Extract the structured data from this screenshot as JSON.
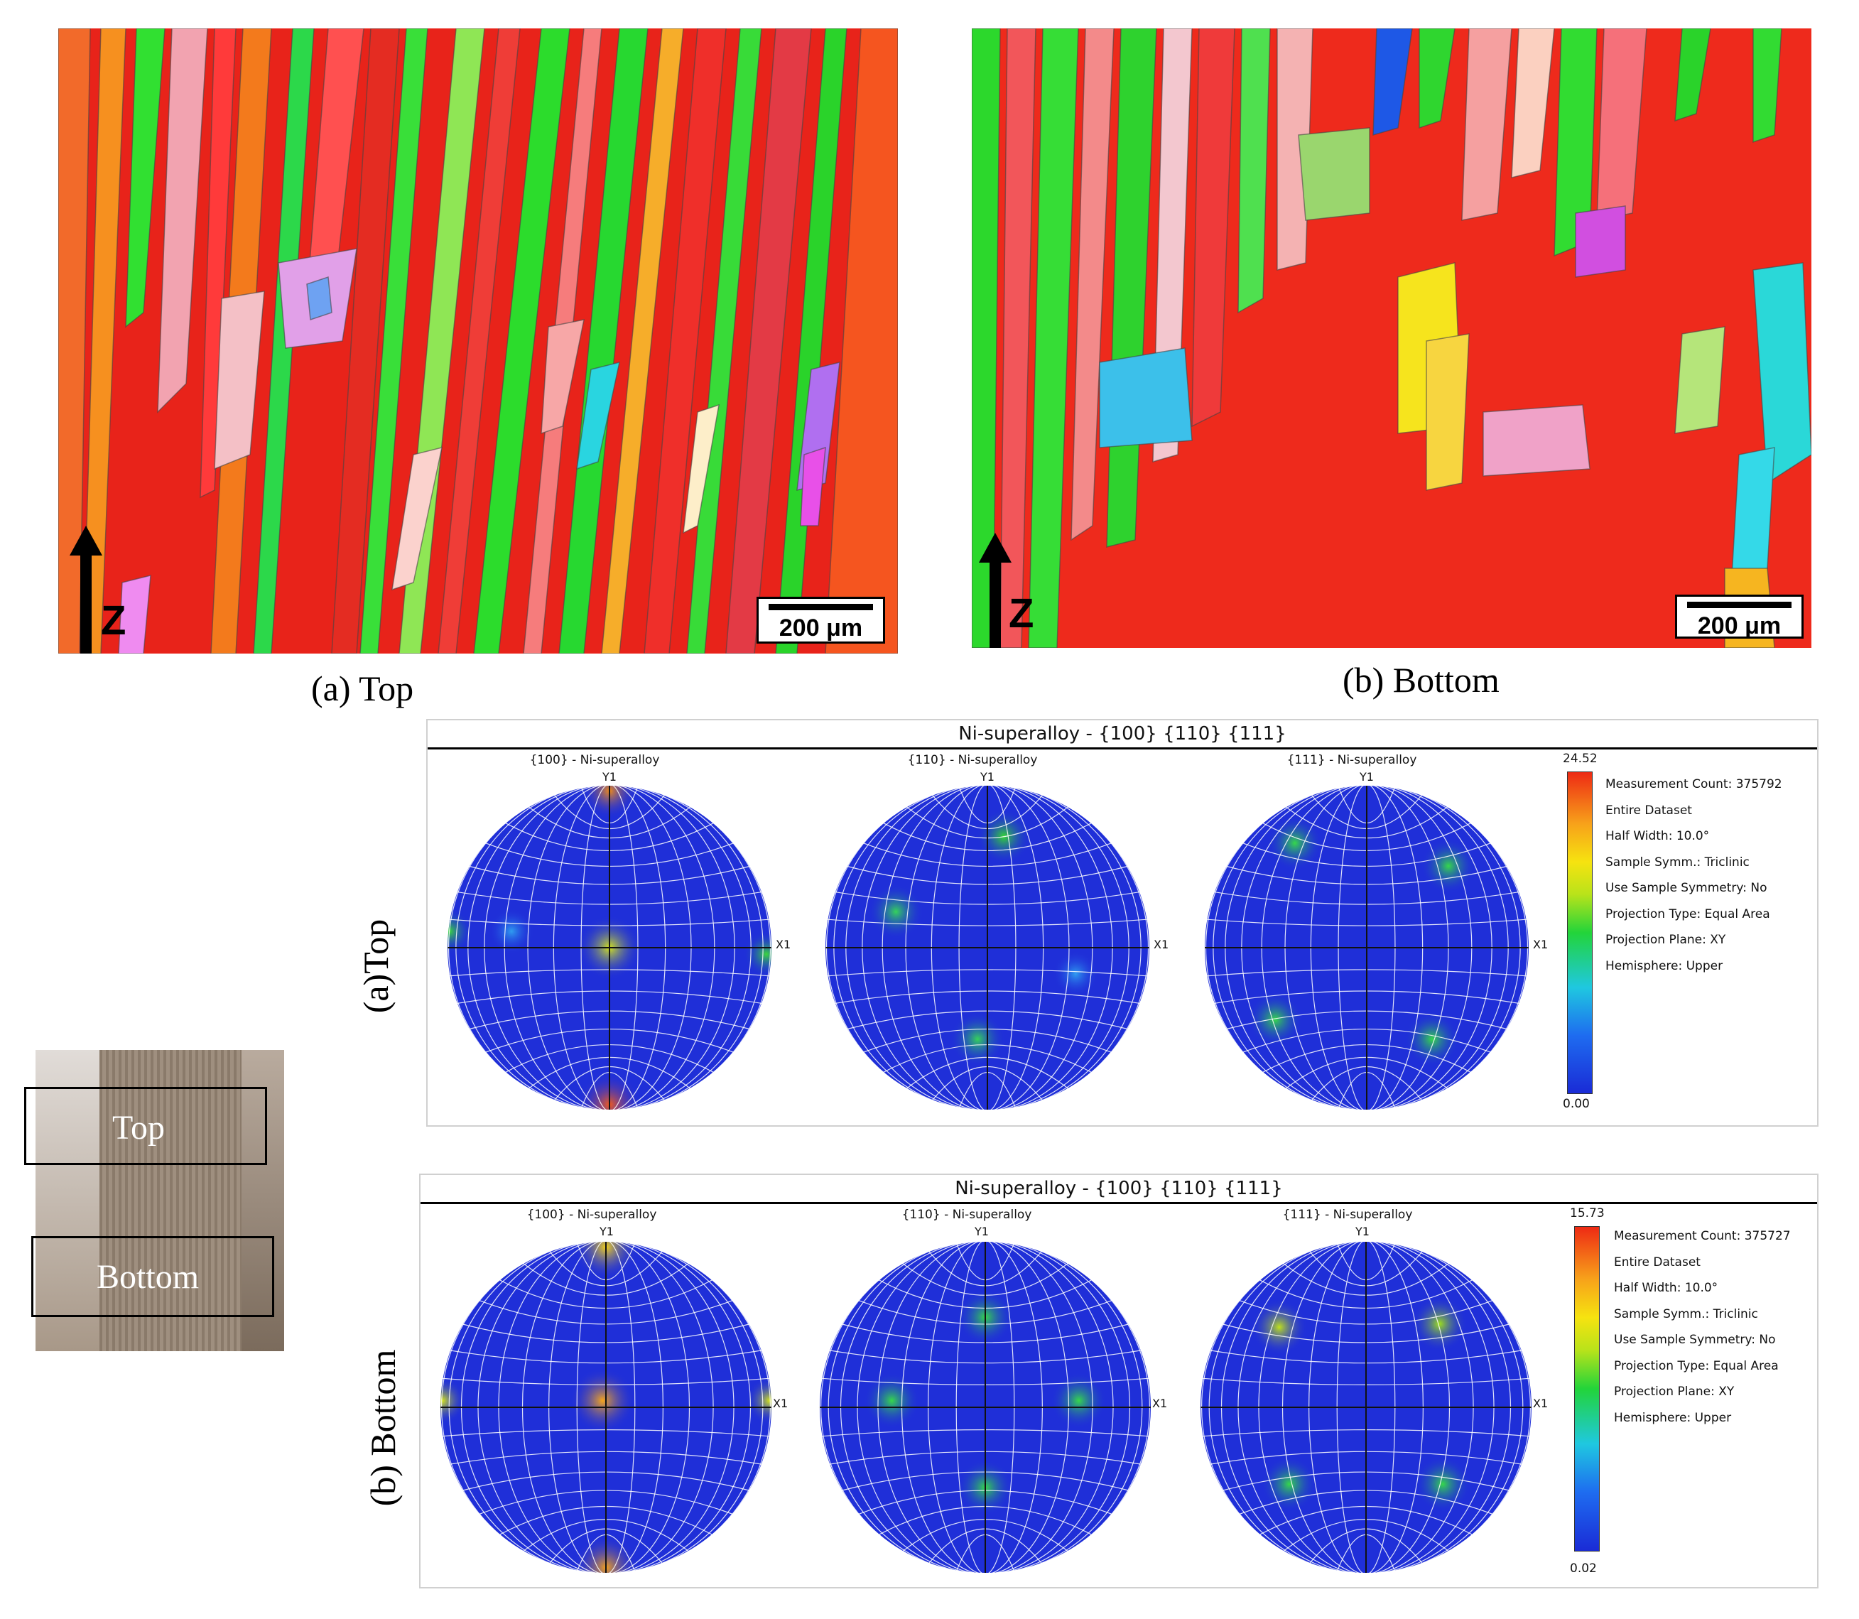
{
  "ebsd_top": {
    "caption": "(a) Top",
    "scale_label": "200 μm",
    "axis_label": "Z"
  },
  "ebsd_bottom": {
    "caption": "(b) Bottom",
    "scale_label": "200 μm",
    "axis_label": "Z"
  },
  "photo": {
    "top_label": "Top",
    "bottom_label": "Bottom"
  },
  "pole_top": {
    "row_label": "(a)Top",
    "header": "Ni-superalloy - {100} {110} {111}",
    "figures": [
      {
        "title": "{100} - Ni-superalloy",
        "y_label": "Y1",
        "x_label": "X1"
      },
      {
        "title": "{110} - Ni-superalloy",
        "y_label": "Y1",
        "x_label": "X1"
      },
      {
        "title": "{111} - Ni-superalloy",
        "y_label": "Y1",
        "x_label": "X1"
      }
    ],
    "colorbar": {
      "max": "24.52",
      "min": "0.00"
    },
    "legend": [
      "Measurement Count: 375792",
      "Entire Dataset",
      "Half Width: 10.0°",
      "Sample Symm.: Triclinic",
      "Use Sample Symmetry: No",
      "Projection Type: Equal Area",
      "Projection Plane: XY",
      "Hemisphere: Upper"
    ]
  },
  "pole_bottom": {
    "row_label": "(b) Bottom",
    "header": "Ni-superalloy - {100} {110} {111}",
    "figures": [
      {
        "title": "{100} - Ni-superalloy",
        "y_label": "Y1",
        "x_label": "X1"
      },
      {
        "title": "{110} - Ni-superalloy",
        "y_label": "Y1",
        "x_label": "X1"
      },
      {
        "title": "{111} - Ni-superalloy",
        "y_label": "Y1",
        "x_label": "X1"
      }
    ],
    "colorbar": {
      "max": "15.73",
      "min": "0.02"
    },
    "legend": [
      "Measurement Count: 375727",
      "Entire Dataset",
      "Half Width: 10.0°",
      "Sample Symm.: Triclinic",
      "Use Sample Symmetry: No",
      "Projection Type: Equal Area",
      "Projection Plane: XY",
      "Hemisphere: Upper"
    ]
  }
}
